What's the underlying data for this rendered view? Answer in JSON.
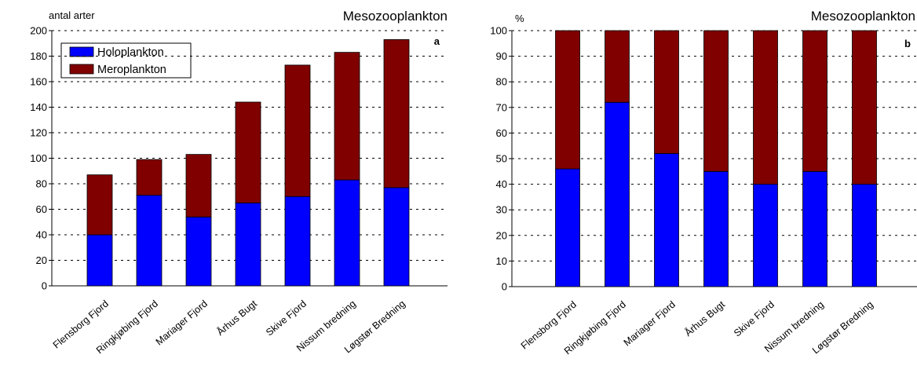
{
  "colors": {
    "holoplankton": "#0000ff",
    "meroplankton": "#800000",
    "grid": "#000000",
    "axis": "#000000"
  },
  "chart_data": [
    {
      "type": "bar",
      "stacked": true,
      "title": "Mesozooplankton",
      "panel_label": "a",
      "ylabel": "antal arter",
      "xlabel": "",
      "ylim": [
        0,
        200
      ],
      "yticks": [
        0,
        20,
        40,
        60,
        80,
        100,
        120,
        140,
        160,
        180,
        200
      ],
      "grid": "dotted horizontal",
      "legend": "top-left",
      "categories": [
        "Flensborg Fjord",
        "Ringkjøbing Fjord",
        "Mariager Fjord",
        "Århus Bugt",
        "Skive Fjord",
        "Nissum bredning",
        "Løgstør Bredning"
      ],
      "series": [
        {
          "name": "Holoplankton",
          "color": "#0000ff",
          "values": [
            40,
            71,
            54,
            65,
            70,
            83,
            77
          ]
        },
        {
          "name": "Meroplankton",
          "color": "#800000",
          "values": [
            47,
            28,
            49,
            79,
            103,
            100,
            116
          ]
        }
      ]
    },
    {
      "type": "bar",
      "stacked": true,
      "title": "Mesozooplankton",
      "panel_label": "b",
      "ylabel": "%",
      "xlabel": "",
      "ylim": [
        0,
        100
      ],
      "yticks": [
        0,
        10,
        20,
        30,
        40,
        50,
        60,
        70,
        80,
        90,
        100
      ],
      "grid": "dotted horizontal",
      "categories": [
        "Flensborg Fjord",
        "Ringkjøbing Fjord",
        "Mariager Fjord",
        "Århus Bugt",
        "Skive Fjord",
        "Nissum bredning",
        "Løgstør Bredning"
      ],
      "series": [
        {
          "name": "Holoplankton",
          "color": "#0000ff",
          "values": [
            46,
            72,
            52,
            45,
            40,
            45,
            40
          ]
        },
        {
          "name": "Meroplankton",
          "color": "#800000",
          "values": [
            54,
            28,
            48,
            55,
            60,
            55,
            60
          ]
        }
      ]
    }
  ]
}
